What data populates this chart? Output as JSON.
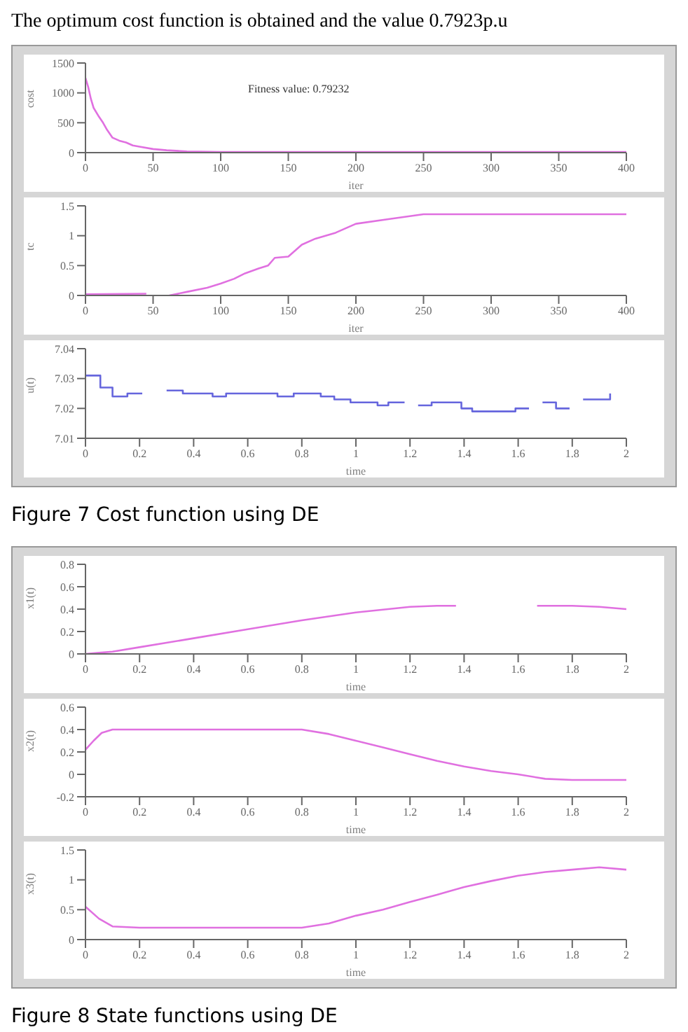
{
  "chart_data": [
    {
      "type": "line",
      "title": "The optimum cost function is obtained and the value 0.7923p.u",
      "xlabel": "iter",
      "ylabel": "cost",
      "xlim": [
        0,
        400
      ],
      "xticks": [
        0,
        50,
        100,
        150,
        200,
        250,
        300,
        350,
        400
      ],
      "ylim": [
        0,
        1500
      ],
      "yticks": [
        0,
        500,
        1000,
        1500
      ],
      "annotations": [
        "Fitness value: 0.79232"
      ],
      "series": [
        {
          "color": "#e070e0",
          "x": [
            0,
            2,
            4,
            6,
            10,
            13,
            16,
            20,
            25,
            30,
            35,
            40,
            50,
            60,
            75,
            100,
            150,
            200,
            300,
            400
          ],
          "values": [
            1250,
            1100,
            900,
            750,
            600,
            500,
            380,
            250,
            200,
            170,
            120,
            100,
            60,
            40,
            20,
            10,
            10,
            10,
            10,
            10
          ]
        }
      ]
    },
    {
      "type": "line",
      "xlabel": "iter",
      "ylabel": "tc",
      "xlim": [
        0,
        400
      ],
      "xticks": [
        0,
        50,
        100,
        150,
        200,
        250,
        300,
        350,
        400
      ],
      "ylim": [
        0,
        1.5
      ],
      "yticks": [
        0,
        0.5,
        1,
        1.5
      ],
      "series": [
        {
          "color": "#e070e0",
          "x": [
            0,
            45,
            52,
            62,
            75,
            90,
            100,
            110,
            118,
            128,
            135,
            140,
            150,
            155,
            160,
            170,
            185,
            200,
            225,
            250,
            300,
            400
          ],
          "values": [
            0.02,
            0.03,
            null,
            0,
            0.06,
            0.13,
            0.2,
            0.28,
            0.37,
            0.45,
            0.5,
            0.63,
            0.65,
            0.75,
            0.85,
            0.95,
            1.05,
            1.2,
            1.28,
            1.36,
            1.36,
            1.36
          ]
        }
      ]
    },
    {
      "type": "step",
      "xlabel": "time",
      "ylabel": "u(t)",
      "xlim": [
        0,
        2
      ],
      "xticks": [
        0,
        0.2,
        0.4,
        0.6,
        0.8,
        1,
        1.2,
        1.4,
        1.6,
        1.8,
        2
      ],
      "ylim": [
        7.01,
        7.04
      ],
      "yticks": [
        7.01,
        7.02,
        7.03,
        7.04
      ],
      "annotations": [
        "Figure 7 Cost function using DE"
      ],
      "series": [
        {
          "color": "#6666dd",
          "x": [
            0,
            0.055,
            0.1,
            0.155,
            0.21,
            0.25,
            0.3,
            0.36,
            0.47,
            0.52,
            0.71,
            0.77,
            0.87,
            0.92,
            0.98,
            1.08,
            1.12,
            1.18,
            1.2,
            1.23,
            1.28,
            1.39,
            1.43,
            1.59,
            1.64,
            1.66,
            1.69,
            1.74,
            1.79,
            1.81,
            1.84,
            1.94
          ],
          "values": [
            7.031,
            7.027,
            7.024,
            7.025,
            7.025,
            null,
            7.026,
            7.025,
            7.024,
            7.025,
            7.024,
            7.025,
            7.024,
            7.023,
            7.022,
            7.021,
            7.022,
            7.022,
            null,
            7.021,
            7.022,
            7.02,
            7.019,
            7.02,
            7.02,
            null,
            7.022,
            7.02,
            7.02,
            null,
            7.023,
            7.025
          ]
        }
      ]
    },
    {
      "type": "line",
      "xlabel": "time",
      "ylabel": "x1(t)",
      "xlim": [
        0,
        2
      ],
      "xticks": [
        0,
        0.2,
        0.4,
        0.6,
        0.8,
        1,
        1.2,
        1.4,
        1.6,
        1.8,
        2
      ],
      "ylim": [
        0,
        0.8
      ],
      "yticks": [
        0,
        0.2,
        0.4,
        0.6,
        0.8
      ],
      "series": [
        {
          "color": "#e070e0",
          "x": [
            0,
            0.05,
            0.1,
            0.2,
            0.4,
            0.6,
            0.8,
            1,
            1.2,
            1.3,
            1.37,
            1.38,
            1.67,
            1.8,
            1.9,
            2
          ],
          "values": [
            0,
            0.01,
            0.02,
            0.06,
            0.14,
            0.22,
            0.3,
            0.37,
            0.42,
            0.43,
            0.43,
            null,
            0.43,
            0.43,
            0.42,
            0.4
          ]
        }
      ]
    },
    {
      "type": "line",
      "xlabel": "time",
      "ylabel": "x2(t)",
      "xlim": [
        0,
        2
      ],
      "xticks": [
        0,
        0.2,
        0.4,
        0.6,
        0.8,
        1,
        1.2,
        1.4,
        1.6,
        1.8,
        2
      ],
      "ylim": [
        -0.2,
        0.6
      ],
      "yticks": [
        -0.2,
        0,
        0.2,
        0.4,
        0.6
      ],
      "series": [
        {
          "color": "#e070e0",
          "x": [
            0,
            0.03,
            0.06,
            0.1,
            0.2,
            0.4,
            0.6,
            0.8,
            0.9,
            1,
            1.1,
            1.2,
            1.3,
            1.4,
            1.5,
            1.6,
            1.7,
            1.8,
            2
          ],
          "values": [
            0.22,
            0.3,
            0.37,
            0.4,
            0.4,
            0.4,
            0.4,
            0.4,
            0.36,
            0.3,
            0.24,
            0.18,
            0.12,
            0.07,
            0.03,
            0,
            -0.04,
            -0.05,
            -0.05
          ]
        }
      ]
    },
    {
      "type": "line",
      "xlabel": "time",
      "ylabel": "x3(t)",
      "xlim": [
        0,
        2
      ],
      "xticks": [
        0,
        0.2,
        0.4,
        0.6,
        0.8,
        1,
        1.2,
        1.4,
        1.6,
        1.8,
        2
      ],
      "ylim": [
        0,
        1.5
      ],
      "yticks": [
        0,
        0.5,
        1,
        1.5
      ],
      "annotations": [
        "Figure 8 State functions using DE"
      ],
      "series": [
        {
          "color": "#e070e0",
          "x": [
            0,
            0.05,
            0.1,
            0.2,
            0.4,
            0.6,
            0.8,
            0.9,
            1,
            1.1,
            1.2,
            1.3,
            1.4,
            1.5,
            1.6,
            1.7,
            1.8,
            1.9,
            2
          ],
          "values": [
            0.55,
            0.35,
            0.22,
            0.2,
            0.2,
            0.2,
            0.2,
            0.27,
            0.4,
            0.5,
            0.63,
            0.75,
            0.88,
            0.98,
            1.07,
            1.13,
            1.17,
            1.21,
            1.17
          ]
        }
      ]
    }
  ]
}
